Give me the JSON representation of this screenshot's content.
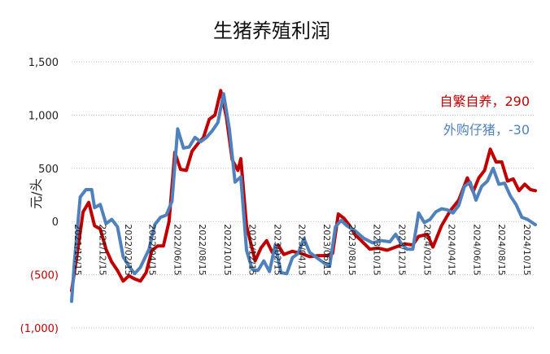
{
  "chart_data": {
    "type": "line",
    "title": "生猪养殖利润",
    "ylabel": "元/头",
    "xlabel": "",
    "ylim": [
      -1000,
      1500
    ],
    "y_ticks": [
      {
        "value": 1500,
        "label": "1,500",
        "negative": false
      },
      {
        "value": 1000,
        "label": "1,000",
        "negative": false
      },
      {
        "value": 500,
        "label": "500",
        "negative": false
      },
      {
        "value": 0,
        "label": "0",
        "negative": false
      },
      {
        "value": -500,
        "label": "(500)",
        "negative": true
      },
      {
        "value": -1000,
        "label": "(1,000)",
        "negative": true
      }
    ],
    "grid": "horizontal-dotted",
    "x_range": [
      "2021-10-15",
      "2024-11-20"
    ],
    "x_tick_labels": [
      {
        "date": "2021-10-15",
        "label": "2021/10/15"
      },
      {
        "date": "2021-12-15",
        "label": "2021/12/15"
      },
      {
        "date": "2022-02-15",
        "label": "2022/02/15"
      },
      {
        "date": "2022-04-15",
        "label": "2022/04/15"
      },
      {
        "date": "2022-06-15",
        "label": "2022/06/15"
      },
      {
        "date": "2022-08-15",
        "label": "2022/08/15"
      },
      {
        "date": "2022-10-15",
        "label": "2022/10/15"
      },
      {
        "date": "2022-12-15",
        "label": "2022/12/15"
      },
      {
        "date": "2023-02-15",
        "label": "2023/02/15"
      },
      {
        "date": "2023-04-15",
        "label": "2023/04/15"
      },
      {
        "date": "2023-06-15",
        "label": "2023/06/15"
      },
      {
        "date": "2023-08-15",
        "label": "2023/08/15"
      },
      {
        "date": "2023-10-15",
        "label": "2023/10/15"
      },
      {
        "date": "2023-12-15",
        "label": "2023/12/15"
      },
      {
        "date": "2024-02-15",
        "label": "2024/02/15"
      },
      {
        "date": "2024-04-15",
        "label": "2024/04/15"
      },
      {
        "date": "2024-06-15",
        "label": "2024/06/15"
      },
      {
        "date": "2024-08-15",
        "label": "2024/08/15"
      },
      {
        "date": "2024-10-15",
        "label": "2024/10/15"
      }
    ],
    "legend": {
      "placement": "top-right",
      "entries": [
        {
          "label": "自繁自养，290",
          "color": "#c00000"
        },
        {
          "label": "外购仔猪，-30",
          "color": "#4f81bd"
        }
      ]
    },
    "series": [
      {
        "color": "#c00000",
        "points": [
          [
            "2021-10-15",
            -650
          ],
          [
            "2021-10-29",
            -300
          ],
          [
            "2021-11-12",
            90
          ],
          [
            "2021-11-26",
            180
          ],
          [
            "2021-12-10",
            -40
          ],
          [
            "2021-12-24",
            -70
          ],
          [
            "2022-01-07",
            -260
          ],
          [
            "2022-01-21",
            -380
          ],
          [
            "2022-02-04",
            -460
          ],
          [
            "2022-02-18",
            -560
          ],
          [
            "2022-03-04",
            -510
          ],
          [
            "2022-03-18",
            -540
          ],
          [
            "2022-04-01",
            -560
          ],
          [
            "2022-04-15",
            -480
          ],
          [
            "2022-04-29",
            -270
          ],
          [
            "2022-05-13",
            -230
          ],
          [
            "2022-05-27",
            -230
          ],
          [
            "2022-06-10",
            0
          ],
          [
            "2022-06-24",
            650
          ],
          [
            "2022-07-08",
            490
          ],
          [
            "2022-07-22",
            480
          ],
          [
            "2022-08-05",
            660
          ],
          [
            "2022-08-19",
            730
          ],
          [
            "2022-09-02",
            790
          ],
          [
            "2022-09-16",
            960
          ],
          [
            "2022-09-30",
            1000
          ],
          [
            "2022-10-14",
            1230
          ],
          [
            "2022-10-28",
            980
          ],
          [
            "2022-11-11",
            580
          ],
          [
            "2022-11-25",
            480
          ],
          [
            "2022-12-02",
            590
          ],
          [
            "2022-12-16",
            -40
          ],
          [
            "2023-01-06",
            -370
          ],
          [
            "2023-01-20",
            -250
          ],
          [
            "2023-02-03",
            -180
          ],
          [
            "2023-02-17",
            -290
          ],
          [
            "2023-03-03",
            -220
          ],
          [
            "2023-03-17",
            -310
          ],
          [
            "2023-04-07",
            -280
          ],
          [
            "2023-04-28",
            -300
          ],
          [
            "2023-05-19",
            -330
          ],
          [
            "2023-06-09",
            -320
          ],
          [
            "2023-06-30",
            -320
          ],
          [
            "2023-07-14",
            -300
          ],
          [
            "2023-07-28",
            70
          ],
          [
            "2023-08-11",
            30
          ],
          [
            "2023-08-25",
            -40
          ],
          [
            "2023-09-08",
            -130
          ],
          [
            "2023-09-22",
            -180
          ],
          [
            "2023-10-13",
            -260
          ],
          [
            "2023-11-03",
            -250
          ],
          [
            "2023-11-24",
            -270
          ],
          [
            "2023-12-15",
            -240
          ],
          [
            "2024-01-05",
            -210
          ],
          [
            "2024-01-26",
            -220
          ],
          [
            "2024-02-09",
            -140
          ],
          [
            "2024-03-01",
            -120
          ],
          [
            "2024-03-15",
            -240
          ],
          [
            "2024-04-05",
            -40
          ],
          [
            "2024-04-26",
            100
          ],
          [
            "2024-05-17",
            200
          ],
          [
            "2024-06-07",
            410
          ],
          [
            "2024-06-21",
            280
          ],
          [
            "2024-07-05",
            410
          ],
          [
            "2024-07-19",
            480
          ],
          [
            "2024-08-02",
            680
          ],
          [
            "2024-08-16",
            560
          ],
          [
            "2024-08-30",
            560
          ],
          [
            "2024-09-13",
            380
          ],
          [
            "2024-09-27",
            400
          ],
          [
            "2024-10-11",
            290
          ],
          [
            "2024-10-25",
            350
          ],
          [
            "2024-11-08",
            300
          ],
          [
            "2024-11-20",
            290
          ]
        ]
      },
      {
        "color": "#4f81bd",
        "points": [
          [
            "2021-10-15",
            -750
          ],
          [
            "2021-10-22",
            -380
          ],
          [
            "2021-11-05",
            230
          ],
          [
            "2021-11-19",
            300
          ],
          [
            "2021-12-03",
            300
          ],
          [
            "2021-12-10",
            130
          ],
          [
            "2021-12-24",
            160
          ],
          [
            "2022-01-07",
            -20
          ],
          [
            "2022-01-21",
            20
          ],
          [
            "2022-02-04",
            -50
          ],
          [
            "2022-02-18",
            -330
          ],
          [
            "2022-03-04",
            -420
          ],
          [
            "2022-03-18",
            -490
          ],
          [
            "2022-04-01",
            -430
          ],
          [
            "2022-04-22",
            -260
          ],
          [
            "2022-05-06",
            -30
          ],
          [
            "2022-05-20",
            40
          ],
          [
            "2022-06-03",
            60
          ],
          [
            "2022-06-17",
            190
          ],
          [
            "2022-07-01",
            870
          ],
          [
            "2022-07-15",
            690
          ],
          [
            "2022-07-29",
            700
          ],
          [
            "2022-08-12",
            790
          ],
          [
            "2022-08-26",
            750
          ],
          [
            "2022-09-09",
            790
          ],
          [
            "2022-09-23",
            850
          ],
          [
            "2022-10-07",
            930
          ],
          [
            "2022-10-21",
            1200
          ],
          [
            "2022-11-04",
            870
          ],
          [
            "2022-11-18",
            370
          ],
          [
            "2022-12-02",
            420
          ],
          [
            "2022-12-16",
            -270
          ],
          [
            "2022-12-30",
            -450
          ],
          [
            "2023-01-13",
            -460
          ],
          [
            "2023-01-27",
            -370
          ],
          [
            "2023-02-10",
            -470
          ],
          [
            "2023-02-24",
            -220
          ],
          [
            "2023-03-10",
            -480
          ],
          [
            "2023-03-24",
            -490
          ],
          [
            "2023-04-07",
            -340
          ],
          [
            "2023-04-21",
            -300
          ],
          [
            "2023-05-05",
            -160
          ],
          [
            "2023-05-19",
            -290
          ],
          [
            "2023-06-02",
            -330
          ],
          [
            "2023-06-23",
            -390
          ],
          [
            "2023-07-07",
            -420
          ],
          [
            "2023-07-21",
            -50
          ],
          [
            "2023-08-04",
            10
          ],
          [
            "2023-08-18",
            -40
          ],
          [
            "2023-09-08",
            -90
          ],
          [
            "2023-09-29",
            -160
          ],
          [
            "2023-10-20",
            -200
          ],
          [
            "2023-11-10",
            -180
          ],
          [
            "2023-12-01",
            -190
          ],
          [
            "2023-12-15",
            -120
          ],
          [
            "2023-12-29",
            -210
          ],
          [
            "2024-01-12",
            -260
          ],
          [
            "2024-01-26",
            -260
          ],
          [
            "2024-02-09",
            80
          ],
          [
            "2024-02-23",
            -10
          ],
          [
            "2024-03-08",
            20
          ],
          [
            "2024-03-22",
            90
          ],
          [
            "2024-04-05",
            120
          ],
          [
            "2024-04-19",
            110
          ],
          [
            "2024-05-03",
            80
          ],
          [
            "2024-05-17",
            150
          ],
          [
            "2024-05-31",
            330
          ],
          [
            "2024-06-14",
            370
          ],
          [
            "2024-06-28",
            200
          ],
          [
            "2024-07-12",
            330
          ],
          [
            "2024-07-26",
            380
          ],
          [
            "2024-08-09",
            500
          ],
          [
            "2024-08-23",
            350
          ],
          [
            "2024-09-06",
            360
          ],
          [
            "2024-09-20",
            240
          ],
          [
            "2024-10-04",
            160
          ],
          [
            "2024-10-18",
            40
          ],
          [
            "2024-11-01",
            20
          ],
          [
            "2024-11-20",
            -30
          ]
        ]
      }
    ]
  }
}
